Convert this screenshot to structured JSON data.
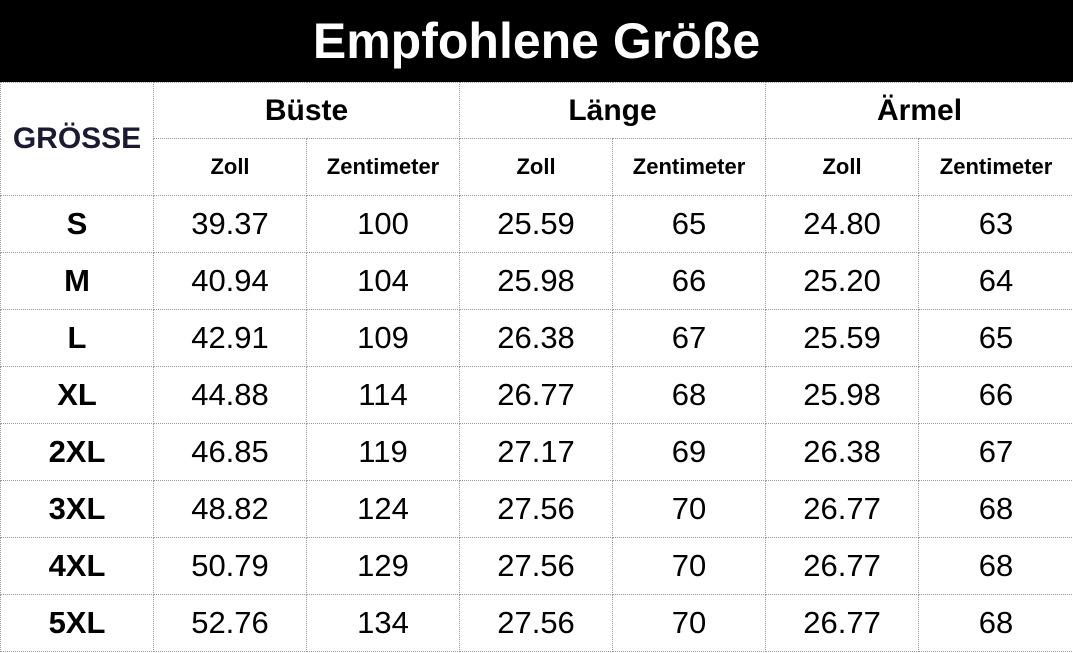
{
  "title": "Empfohlene Größe",
  "table": {
    "size_header": "GRÖSSE",
    "groups": [
      "Büste",
      "Länge",
      "Ärmel"
    ],
    "units": [
      "Zoll",
      "Zentimeter",
      "Zoll",
      "Zentimeter",
      "Zoll",
      "Zentimeter"
    ],
    "rows": [
      [
        "S",
        "39.37",
        "100",
        "25.59",
        "65",
        "24.80",
        "63"
      ],
      [
        "M",
        "40.94",
        "104",
        "25.98",
        "66",
        "25.20",
        "64"
      ],
      [
        "L",
        "42.91",
        "109",
        "26.38",
        "67",
        "25.59",
        "65"
      ],
      [
        "XL",
        "44.88",
        "114",
        "26.77",
        "68",
        "25.98",
        "66"
      ],
      [
        "2XL",
        "46.85",
        "119",
        "27.17",
        "69",
        "26.38",
        "67"
      ],
      [
        "3XL",
        "48.82",
        "124",
        "27.56",
        "70",
        "26.77",
        "68"
      ],
      [
        "4XL",
        "50.79",
        "129",
        "27.56",
        "70",
        "26.77",
        "68"
      ],
      [
        "5XL",
        "52.76",
        "134",
        "27.56",
        "70",
        "26.77",
        "68"
      ]
    ]
  }
}
